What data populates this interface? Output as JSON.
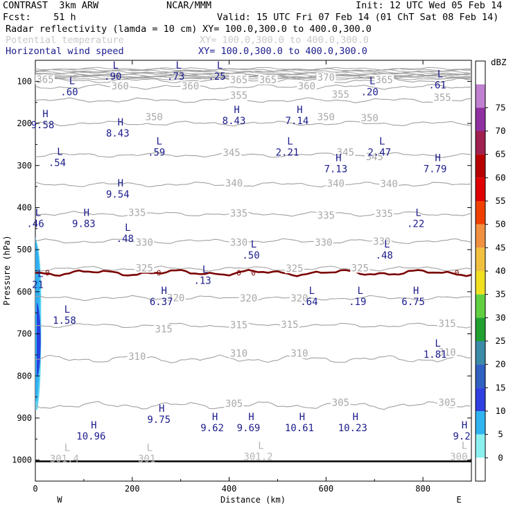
{
  "header": {
    "model": "CONTRAST  3km ARW",
    "org": "NCAR/MMM",
    "init": "Init: 12 UTC Wed 05 Feb 14",
    "fcst": "Fcst:    51 h",
    "valid": "Valid: 15 UTC Fri 07 Feb 14 (01 ChT Sat 08 Feb 14)",
    "field1_name": "Radar reflectivity (lamda = 10 cm)",
    "field1_xy": "XY= 100.0,300.0 to 400.0,300.0",
    "field2_name": "Potential temperature",
    "field2_xy": "XY= 100.0,300.0 to 400.0,300.0",
    "field3_name": "Horizontal wind speed",
    "field3_xy": "XY= 100.0,300.0 to 400.0,300.0"
  },
  "colors": {
    "theta": "#a0a0a0",
    "theta_label": "#a8a8a8",
    "wind": "#1a1a8c",
    "freezing": "#7a0000",
    "reflectivity_light": "#5ad2f0",
    "reflectivity_mid": "#30aef0",
    "reflectivity_core": "#2840e0"
  },
  "chart_data": {
    "type": "cross-section",
    "title": "Radar reflectivity / Potential temperature / Horizontal wind speed",
    "xlabel": "Distance (km)",
    "ylabel": "Pressure (hPa)",
    "xlim": [
      0,
      900
    ],
    "ylim": [
      1050,
      50
    ],
    "x_ticks": [
      0,
      200,
      400,
      600,
      800
    ],
    "y_ticks": [
      100,
      200,
      300,
      400,
      500,
      600,
      700,
      800,
      900,
      1000
    ],
    "west_label": "W",
    "east_label": "E",
    "theta_levels": [
      {
        "theta": 305,
        "p": 870
      },
      {
        "theta": 310,
        "p": 760
      },
      {
        "theta": 315,
        "p": 680
      },
      {
        "theta": 320,
        "p": 615
      },
      {
        "theta": 325,
        "p": 545
      },
      {
        "theta": 330,
        "p": 480
      },
      {
        "theta": 335,
        "p": 415
      },
      {
        "theta": 340,
        "p": 345
      },
      {
        "theta": 345,
        "p": 275
      },
      {
        "theta": 350,
        "p": 200
      },
      {
        "theta": 355,
        "p": 145
      },
      {
        "theta": 360,
        "p": 113
      },
      {
        "theta": 365,
        "p": 98
      },
      {
        "theta": 370,
        "p": 88
      }
    ],
    "theta_labels": [
      {
        "text": "365",
        "x": 20,
        "p": 97
      },
      {
        "text": "360",
        "x": 175,
        "p": 113
      },
      {
        "text": "360",
        "x": 320,
        "p": 113
      },
      {
        "text": "365",
        "x": 420,
        "p": 98
      },
      {
        "text": "365",
        "x": 480,
        "p": 98
      },
      {
        "text": "360",
        "x": 560,
        "p": 113
      },
      {
        "text": "370",
        "x": 600,
        "p": 92
      },
      {
        "text": "365",
        "x": 720,
        "p": 98
      },
      {
        "text": "355",
        "x": 420,
        "p": 135
      },
      {
        "text": "355",
        "x": 630,
        "p": 132
      },
      {
        "text": "355",
        "x": 840,
        "p": 140
      },
      {
        "text": "350",
        "x": 245,
        "p": 186
      },
      {
        "text": "350",
        "x": 600,
        "p": 186
      },
      {
        "text": "350",
        "x": 690,
        "p": 188
      },
      {
        "text": "345",
        "x": 405,
        "p": 271
      },
      {
        "text": "345",
        "x": 640,
        "p": 270
      },
      {
        "text": "345",
        "x": 700,
        "p": 281
      },
      {
        "text": "340",
        "x": 410,
        "p": 343
      },
      {
        "text": "340",
        "x": 620,
        "p": 344
      },
      {
        "text": "340",
        "x": 730,
        "p": 345
      },
      {
        "text": "335",
        "x": 210,
        "p": 413
      },
      {
        "text": "335",
        "x": 420,
        "p": 415
      },
      {
        "text": "335",
        "x": 600,
        "p": 420
      },
      {
        "text": "335",
        "x": 720,
        "p": 416
      },
      {
        "text": "330",
        "x": 225,
        "p": 484
      },
      {
        "text": "330",
        "x": 420,
        "p": 484
      },
      {
        "text": "330",
        "x": 595,
        "p": 484
      },
      {
        "text": "330",
        "x": 715,
        "p": 482
      },
      {
        "text": "325",
        "x": 225,
        "p": 545
      },
      {
        "text": "325",
        "x": 535,
        "p": 546
      },
      {
        "text": "325",
        "x": 670,
        "p": 545
      },
      {
        "text": "320",
        "x": 440,
        "p": 617
      },
      {
        "text": "320",
        "x": 545,
        "p": 617
      },
      {
        "text": "320",
        "x": 290,
        "p": 616
      },
      {
        "text": "315",
        "x": 265,
        "p": 690
      },
      {
        "text": "315",
        "x": 420,
        "p": 680
      },
      {
        "text": "315",
        "x": 525,
        "p": 679
      },
      {
        "text": "315",
        "x": 850,
        "p": 677
      },
      {
        "text": "310",
        "x": 210,
        "p": 755
      },
      {
        "text": "310",
        "x": 420,
        "p": 748
      },
      {
        "text": "310",
        "x": 545,
        "p": 748
      },
      {
        "text": "310",
        "x": 850,
        "p": 745
      },
      {
        "text": "305",
        "x": 410,
        "p": 867
      },
      {
        "text": "305",
        "x": 630,
        "p": 865
      },
      {
        "text": "305",
        "x": 850,
        "p": 865
      }
    ],
    "freezing_level": {
      "label": "0",
      "p": 555
    },
    "wind_extrema": [
      {
        "type": "L",
        "value": ".90",
        "x": 160,
        "p": 70
      },
      {
        "type": "L",
        "value": ".73",
        "x": 290,
        "p": 70
      },
      {
        "type": "L",
        "value": ".25",
        "x": 375,
        "p": 70
      },
      {
        "type": "L",
        "value": ".60",
        "x": 70,
        "p": 107
      },
      {
        "type": "L",
        "value": ".20",
        "x": 690,
        "p": 107
      },
      {
        "type": "L",
        "value": ".61",
        "x": 830,
        "p": 90
      },
      {
        "type": "H",
        "value": "9.58",
        "x": 15,
        "p": 185
      },
      {
        "type": "H",
        "value": "8.43",
        "x": 170,
        "p": 205
      },
      {
        "type": "H",
        "value": "8.43",
        "x": 410,
        "p": 175
      },
      {
        "type": "H",
        "value": "7.14",
        "x": 540,
        "p": 175
      },
      {
        "type": "L",
        "value": ".59",
        "x": 250,
        "p": 250
      },
      {
        "type": "L",
        "value": "2.21",
        "x": 520,
        "p": 250
      },
      {
        "type": "L",
        "value": "2.47",
        "x": 710,
        "p": 250
      },
      {
        "type": "L",
        "value": ".54",
        "x": 45,
        "p": 275
      },
      {
        "type": "H",
        "value": "7.13",
        "x": 620,
        "p": 290
      },
      {
        "type": "H",
        "value": "7.79",
        "x": 825,
        "p": 290
      },
      {
        "type": "H",
        "value": "9.54",
        "x": 170,
        "p": 350
      },
      {
        "type": "H",
        "value": "9.83",
        "x": 100,
        "p": 420
      },
      {
        "type": "L",
        "value": ".46",
        "x": 0,
        "p": 420
      },
      {
        "type": "L",
        "value": ".22",
        "x": 785,
        "p": 420
      },
      {
        "type": "L",
        "value": ".48",
        "x": 185,
        "p": 455
      },
      {
        "type": "L",
        "value": ".50",
        "x": 445,
        "p": 495
      },
      {
        "type": "L",
        "value": ".48",
        "x": 720,
        "p": 495
      },
      {
        "type": "L",
        "value": "21",
        "x": 5,
        "p": 565
      },
      {
        "type": "L",
        "value": ".13",
        "x": 345,
        "p": 555
      },
      {
        "type": "H",
        "value": "6.37",
        "x": 260,
        "p": 605
      },
      {
        "type": "L",
        "value": ".64",
        "x": 565,
        "p": 605
      },
      {
        "type": "L",
        "value": ".19",
        "x": 665,
        "p": 605
      },
      {
        "type": "H",
        "value": "6.75",
        "x": 780,
        "p": 605
      },
      {
        "type": "L",
        "value": "1.58",
        "x": 60,
        "p": 650
      },
      {
        "type": "L",
        "value": "1.81",
        "x": 825,
        "p": 730
      },
      {
        "type": "H",
        "value": "9.75",
        "x": 255,
        "p": 885
      },
      {
        "type": "H",
        "value": "9.62",
        "x": 365,
        "p": 905
      },
      {
        "type": "H",
        "value": "9.69",
        "x": 440,
        "p": 905
      },
      {
        "type": "H",
        "value": "10.61",
        "x": 545,
        "p": 905
      },
      {
        "type": "H",
        "value": "10.23",
        "x": 655,
        "p": 905
      },
      {
        "type": "H",
        "value": "10.96",
        "x": 115,
        "p": 925
      },
      {
        "type": "H",
        "value": "9.2",
        "x": 880,
        "p": 925
      }
    ],
    "theta_extrema": [
      {
        "type": "L",
        "value": "301.4",
        "x": 60,
        "p": 985
      },
      {
        "type": "L",
        "value": "301",
        "x": 230,
        "p": 985
      },
      {
        "type": "L",
        "value": "301.2",
        "x": 460,
        "p": 980
      },
      {
        "type": "L",
        "value": "300.",
        "x": 880,
        "p": 980
      }
    ],
    "colorbar": {
      "unit": "dBZ",
      "levels": [
        0,
        5,
        10,
        15,
        20,
        25,
        30,
        35,
        40,
        45,
        50,
        55,
        60,
        65,
        70,
        75
      ],
      "colors": [
        "#ffffff",
        "#8cf0f0",
        "#30b4f0",
        "#3040e0",
        "#3060c0",
        "#3a8aa8",
        "#20a030",
        "#60d040",
        "#f0e020",
        "#f0c040",
        "#f09040",
        "#f04000",
        "#e00000",
        "#b80000",
        "#a02050",
        "#9030a0",
        "#c080d0",
        "#ffffff"
      ]
    }
  }
}
